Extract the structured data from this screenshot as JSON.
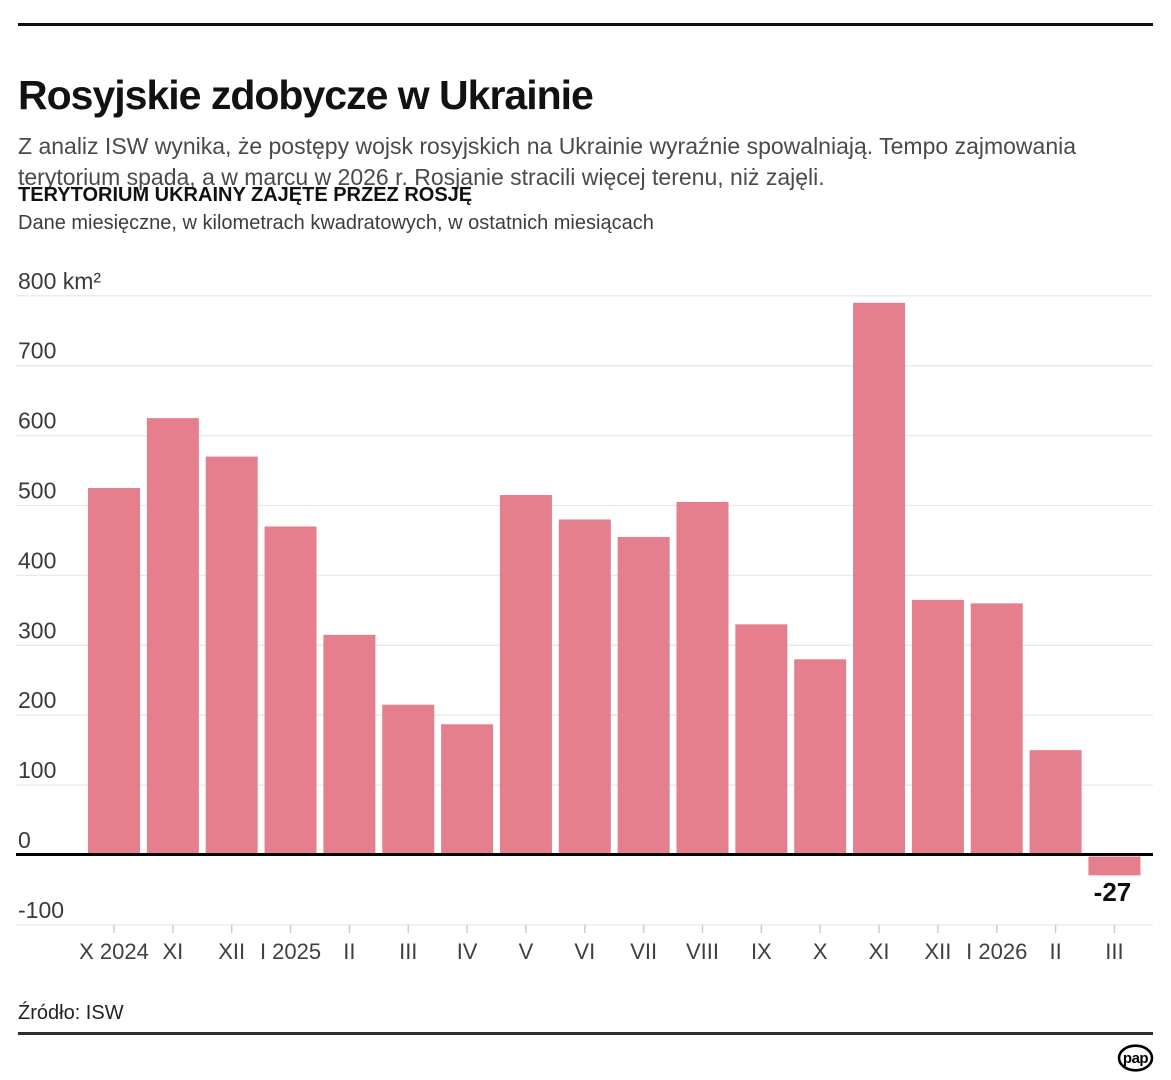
{
  "page": {
    "background": "#ffffff",
    "rule_color": "#111111"
  },
  "header": {
    "title": "Rosyjskie zdobycze w Ukrainie",
    "lead": "Z analiz ISW wynika, że postępy wojsk rosyjskich na Ukrainie wyraźnie spowalniają. Tempo zajmowania terytorium spada, a w marcu w 2026 r. Rosjanie stracili więcej terenu, niż zajęli."
  },
  "chart_header": {
    "title": "TERYTORIUM UKRAINY ZAJĘTE PRZEZ ROSJĘ",
    "subtitle": "Dane miesięczne, w kilometrach kwadratowych, w ostatnich miesiącach"
  },
  "chart_data": {
    "type": "bar",
    "title": "TERYTORIUM UKRAINY ZAJĘTE PRZEZ ROSJĘ",
    "subtitle": "Dane miesięczne, w kilometrach kwadratowych, w ostatnich miesiącach",
    "unit": "km²",
    "categories": [
      "X 2024",
      "XI",
      "XII",
      "I 2025",
      "II",
      "III",
      "IV",
      "V",
      "VI",
      "VII",
      "VIII",
      "IX",
      "X",
      "XI",
      "XII",
      "I 2026",
      "II",
      "III"
    ],
    "values": [
      525,
      625,
      570,
      470,
      315,
      215,
      187,
      515,
      480,
      455,
      505,
      330,
      280,
      790,
      365,
      360,
      150,
      -27
    ],
    "y_ticks": [
      {
        "value": 800,
        "label": "800 km²"
      },
      {
        "value": 700,
        "label": "700"
      },
      {
        "value": 600,
        "label": "600"
      },
      {
        "value": 500,
        "label": "500"
      },
      {
        "value": 400,
        "label": "400"
      },
      {
        "value": 300,
        "label": "300"
      },
      {
        "value": 200,
        "label": "200"
      },
      {
        "value": 100,
        "label": "100"
      },
      {
        "value": 0,
        "label": "0"
      },
      {
        "value": -100,
        "label": "-100"
      }
    ],
    "ylim": [
      -100,
      800
    ],
    "xlabel": "",
    "ylabel": "",
    "grid": true,
    "legend": "none",
    "bar_color": "#e57f8d",
    "grid_color": "#e9e9e9",
    "axis_color": "#000000",
    "tick_color": "#c9c9c9",
    "annotation": {
      "text": "-27",
      "bar_index": 17
    }
  },
  "footer": {
    "source": "Źródło: ISW",
    "logo_text": "pap"
  }
}
